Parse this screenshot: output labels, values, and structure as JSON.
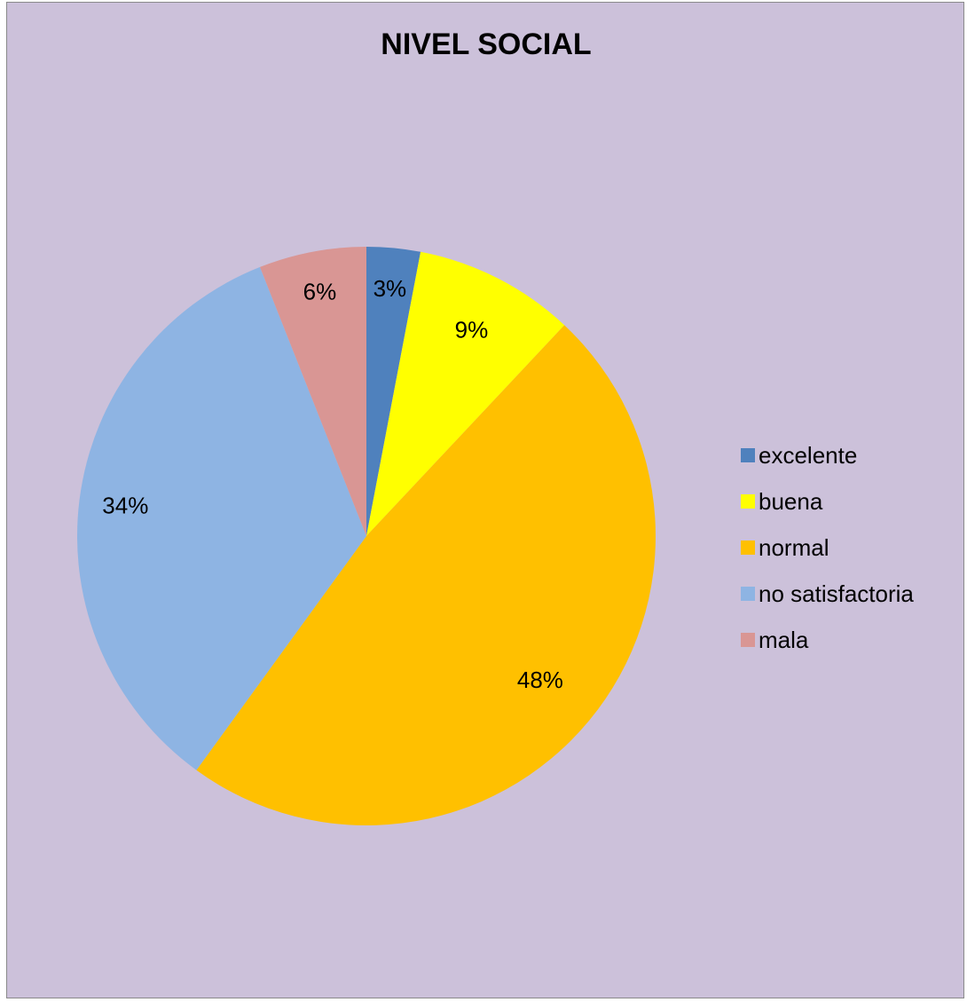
{
  "chart_data": {
    "type": "pie",
    "title": "NIVEL SOCIAL",
    "categories": [
      "excelente",
      "buena",
      "normal",
      "no satisfactoria",
      "mala"
    ],
    "values": [
      3,
      9,
      48,
      34,
      6
    ],
    "data_labels": [
      "3%",
      "9%",
      "48%",
      "34%",
      "6%"
    ],
    "colors": [
      "#4f81bd",
      "#ffff00",
      "#ffc000",
      "#8eb4e3",
      "#d99694"
    ],
    "legend_position": "right",
    "background_color": "#ccc1da",
    "start_angle": "12 o'clock, clockwise"
  }
}
